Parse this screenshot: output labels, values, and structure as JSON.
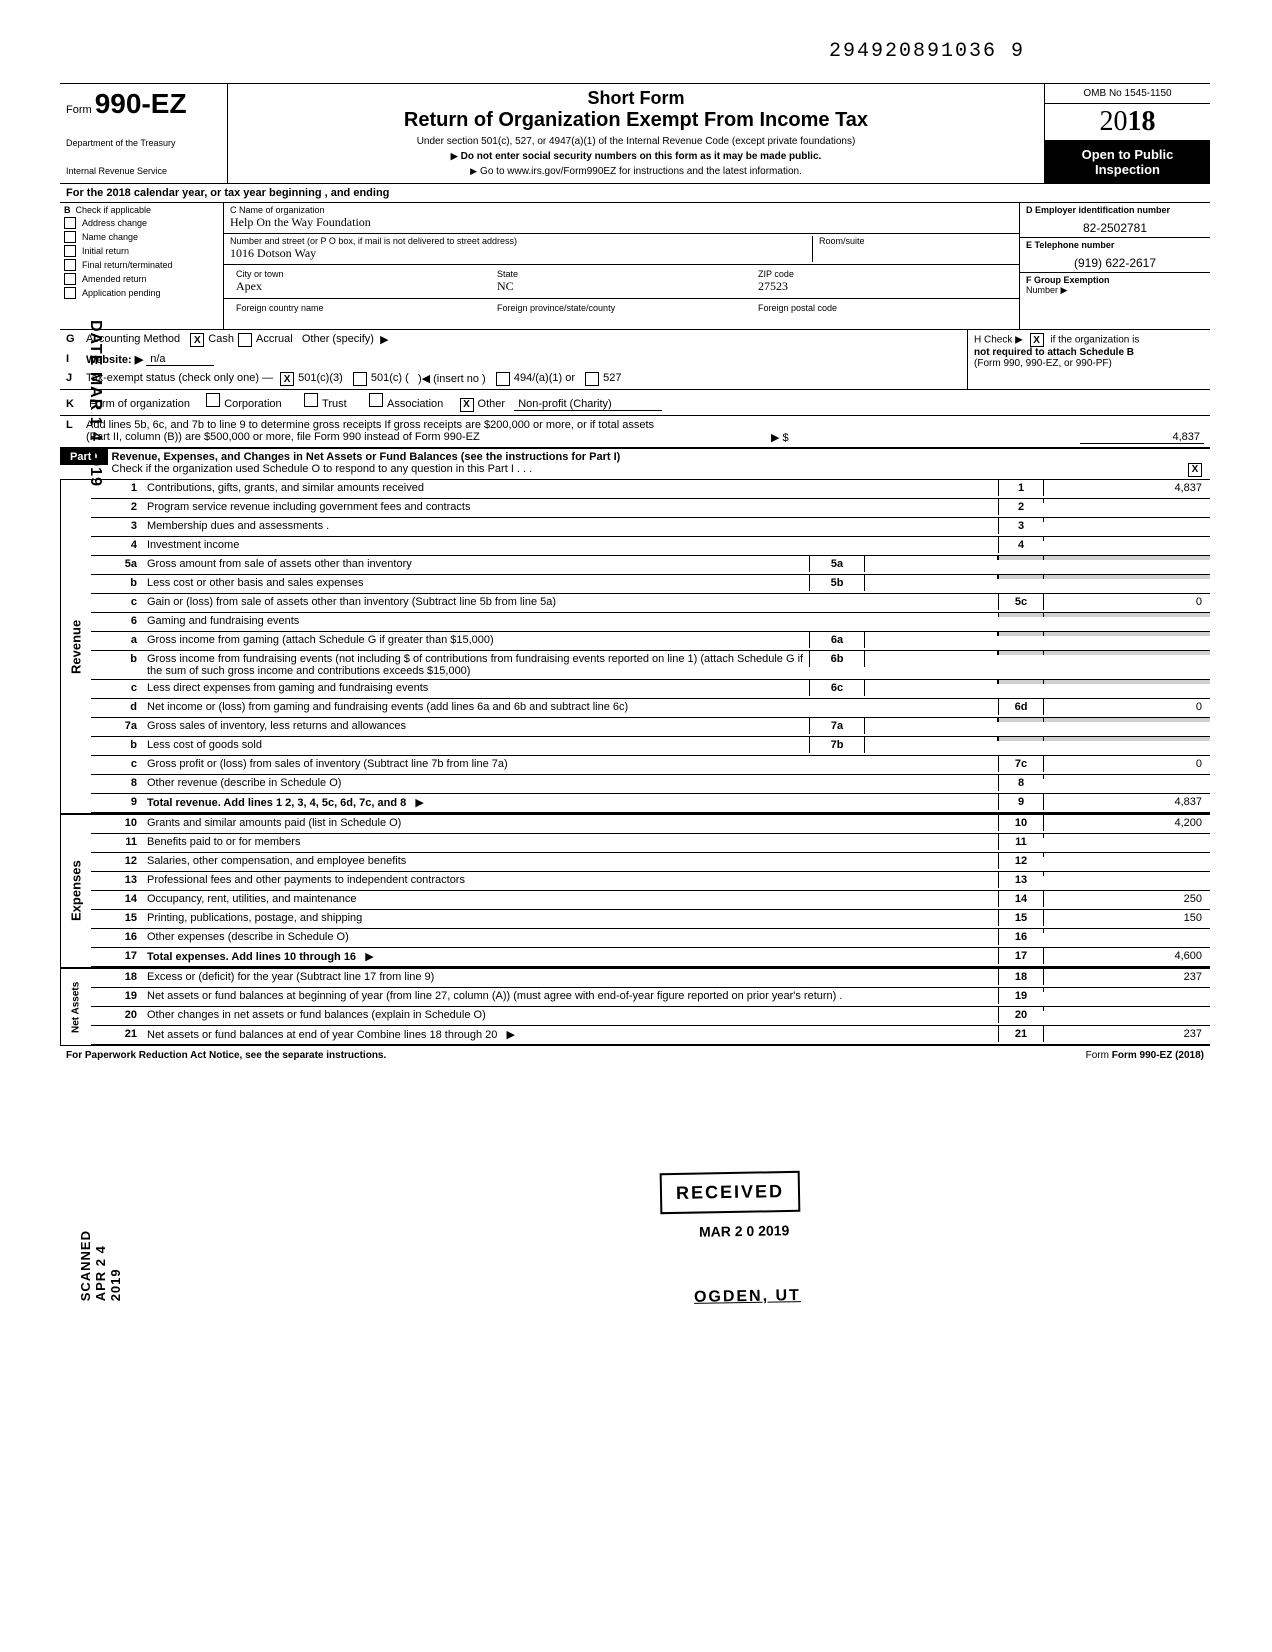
{
  "doc_id": "294920891036 9",
  "form": {
    "prefix": "Form",
    "number": "990-EZ",
    "dept1": "Department of the Treasury",
    "dept2": "Internal Revenue Service"
  },
  "header": {
    "short": "Short Form",
    "title": "Return of Organization Exempt From Income Tax",
    "sub1": "Under section 501(c), 527, or 4947(a)(1) of the Internal Revenue Code (except private foundations)",
    "sub2": "Do not enter social security numbers on this form as it may be made public.",
    "sub3": "Go to www.irs.gov/Form990EZ for instructions and the latest information.",
    "omb": "OMB No 1545-1150",
    "year_prefix": "20",
    "year_bold": "18",
    "open1": "Open to Public",
    "open2": "Inspection"
  },
  "rowA": "For the 2018 calendar year, or tax year beginning                                          , and ending",
  "colB": {
    "hdr": "Check if applicable",
    "items": [
      "Address change",
      "Name change",
      "Initial return",
      "Final return/terminated",
      "Amended return",
      "Application pending"
    ],
    "lbl": "B"
  },
  "colC": {
    "name_lbl": "C  Name of organization",
    "name": "Help On the Way Foundation",
    "street_lbl": "Number and street (or P O box, if mail is not delivered to street address)",
    "room_lbl": "Room/suite",
    "street": "1016 Dotson Way",
    "city_lbl": "City or town",
    "state_lbl": "State",
    "zip_lbl": "ZIP code",
    "city": "Apex",
    "state": "NC",
    "zip": "27523",
    "fc_lbl": "Foreign country name",
    "fp_lbl": "Foreign province/state/county",
    "fz_lbl": "Foreign postal code"
  },
  "colD": {
    "ein_lbl": "D  Employer identification number",
    "ein": "82-2502781",
    "tel_lbl": "E  Telephone number",
    "tel": "(919) 622-2617",
    "grp_lbl": "F  Group Exemption",
    "grp2": "Number ▶"
  },
  "rowG": {
    "lbl": "G",
    "text": "Accounting Method",
    "cash": "Cash",
    "accrual": "Accrual",
    "other": "Other (specify)"
  },
  "rowH": {
    "text": "H  Check ▶",
    "text2": "if the organization is",
    "text3": "not required to attach Schedule B",
    "text4": "(Form 990, 990-EZ, or 990-PF)"
  },
  "rowI": {
    "lbl": "I",
    "text": "Website: ▶",
    "val": "n/a"
  },
  "rowJ": {
    "lbl": "J",
    "text": "Tax-exempt status (check only one) —",
    "o1": "501(c)(3)",
    "o2": "501(c) (",
    "o2b": ")◀ (insert no )",
    "o3": "494/(a)(1) or",
    "o4": "527"
  },
  "rowK": {
    "lbl": "K",
    "text": "Form of organization",
    "o1": "Corporation",
    "o2": "Trust",
    "o3": "Association",
    "o4": "Other",
    "val": "Non-profit (Charity)"
  },
  "rowL": {
    "lbl": "L",
    "text1": "Add lines 5b, 6c, and 7b to line 9 to determine gross receipts  If gross receipts are $200,000 or more, or if total assets",
    "text2": "(Part II, column (B)) are $500,000 or more, file Form 990 instead of Form 990-EZ",
    "amt_lbl": "▶ $",
    "amt": "4,837"
  },
  "part1": {
    "hdr": "Part I",
    "title": "Revenue, Expenses, and Changes in Net Assets or Fund Balances (see the instructions for Part I)",
    "sub": "Check if the organization used Schedule O to respond to any question in this Part I  .  .  .",
    "checked": "X"
  },
  "tabs": {
    "rev": "Revenue",
    "exp": "Expenses",
    "na": "Net Assets"
  },
  "lines": {
    "l1": {
      "n": "1",
      "d": "Contributions, gifts, grants, and similar amounts received",
      "box": "1",
      "amt": "4,837"
    },
    "l2": {
      "n": "2",
      "d": "Program service revenue including government fees and contracts",
      "box": "2",
      "amt": ""
    },
    "l3": {
      "n": "3",
      "d": "Membership dues and assessments   .",
      "box": "3",
      "amt": ""
    },
    "l4": {
      "n": "4",
      "d": "Investment income",
      "box": "4",
      "amt": ""
    },
    "l5a": {
      "n": "5a",
      "d": "Gross amount from sale of assets other than inventory",
      "mid": "5a"
    },
    "l5b": {
      "n": "b",
      "d": "Less  cost or other basis and sales expenses",
      "mid": "5b"
    },
    "l5c": {
      "n": "c",
      "d": "Gain or (loss) from sale of assets other than inventory (Subtract line 5b from line 5a)",
      "box": "5c",
      "amt": "0"
    },
    "l6": {
      "n": "6",
      "d": "Gaming and fundraising events"
    },
    "l6a": {
      "n": "a",
      "d": "Gross income from gaming (attach Schedule G if greater than $15,000)",
      "mid": "6a"
    },
    "l6b": {
      "n": "b",
      "d": "Gross income from fundraising events (not including        $                  of contributions from fundraising events reported on line 1) (attach Schedule G if the sum of such gross income and contributions exceeds $15,000)",
      "mid": "6b"
    },
    "l6c": {
      "n": "c",
      "d": "Less  direct expenses from gaming and fundraising events",
      "mid": "6c"
    },
    "l6d": {
      "n": "d",
      "d": "Net income or (loss) from gaming and fundraising events (add lines 6a and 6b and subtract line 6c)",
      "box": "6d",
      "amt": "0"
    },
    "l7a": {
      "n": "7a",
      "d": "Gross sales of inventory, less returns and allowances",
      "mid": "7a"
    },
    "l7b": {
      "n": "b",
      "d": "Less  cost of goods sold",
      "mid": "7b"
    },
    "l7c": {
      "n": "c",
      "d": "Gross profit or (loss) from sales of inventory (Subtract line 7b from line 7a)",
      "box": "7c",
      "amt": "0"
    },
    "l8": {
      "n": "8",
      "d": "Other revenue (describe in Schedule O)",
      "box": "8",
      "amt": ""
    },
    "l9": {
      "n": "9",
      "d": "Total revenue. Add lines 1  2, 3, 4, 5c, 6d, 7c, and 8",
      "box": "9",
      "amt": "4,837",
      "bold": true,
      "arrow": true
    },
    "l10": {
      "n": "10",
      "d": "Grants and similar amounts paid (list in Schedule O)",
      "box": "10",
      "amt": "4,200"
    },
    "l11": {
      "n": "11",
      "d": "Benefits paid to or for members",
      "box": "11",
      "amt": ""
    },
    "l12": {
      "n": "12",
      "d": "Salaries, other compensation, and employee benefits",
      "box": "12",
      "amt": ""
    },
    "l13": {
      "n": "13",
      "d": "Professional fees and other payments to independent contractors",
      "box": "13",
      "amt": ""
    },
    "l14": {
      "n": "14",
      "d": "Occupancy, rent, utilities, and maintenance",
      "box": "14",
      "amt": "250"
    },
    "l15": {
      "n": "15",
      "d": "Printing, publications, postage, and shipping",
      "box": "15",
      "amt": "150"
    },
    "l16": {
      "n": "16",
      "d": "Other expenses (describe in Schedule O)",
      "box": "16",
      "amt": ""
    },
    "l17": {
      "n": "17",
      "d": "Total expenses. Add lines 10 through 16",
      "box": "17",
      "amt": "4,600",
      "bold": true,
      "arrow": true
    },
    "l18": {
      "n": "18",
      "d": "Excess or (deficit) for the year (Subtract line 17 from line 9)",
      "box": "18",
      "amt": "237"
    },
    "l19": {
      "n": "19",
      "d": "Net assets or fund balances at beginning of year (from line 27, column (A)) (must agree with end-of-year figure reported on prior year's return) .",
      "box": "19",
      "amt": ""
    },
    "l20": {
      "n": "20",
      "d": "Other changes in net assets or fund balances (explain in Schedule O)",
      "box": "20",
      "amt": ""
    },
    "l21": {
      "n": "21",
      "d": "Net assets or fund balances at end of year  Combine lines 18 through 20",
      "box": "21",
      "amt": "237",
      "arrow": true
    }
  },
  "footer": {
    "left": "For Paperwork Reduction Act Notice, see the separate instructions.",
    "right": "Form 990-EZ (2018)"
  },
  "stamps": {
    "received": "RECEIVED",
    "date": "MAR 2 0 2019",
    "ogden": "OGDEN, UT",
    "date_side": "DATE MAR 1 4 2019",
    "scanned": "SCANNED APR 2 4 2019"
  }
}
